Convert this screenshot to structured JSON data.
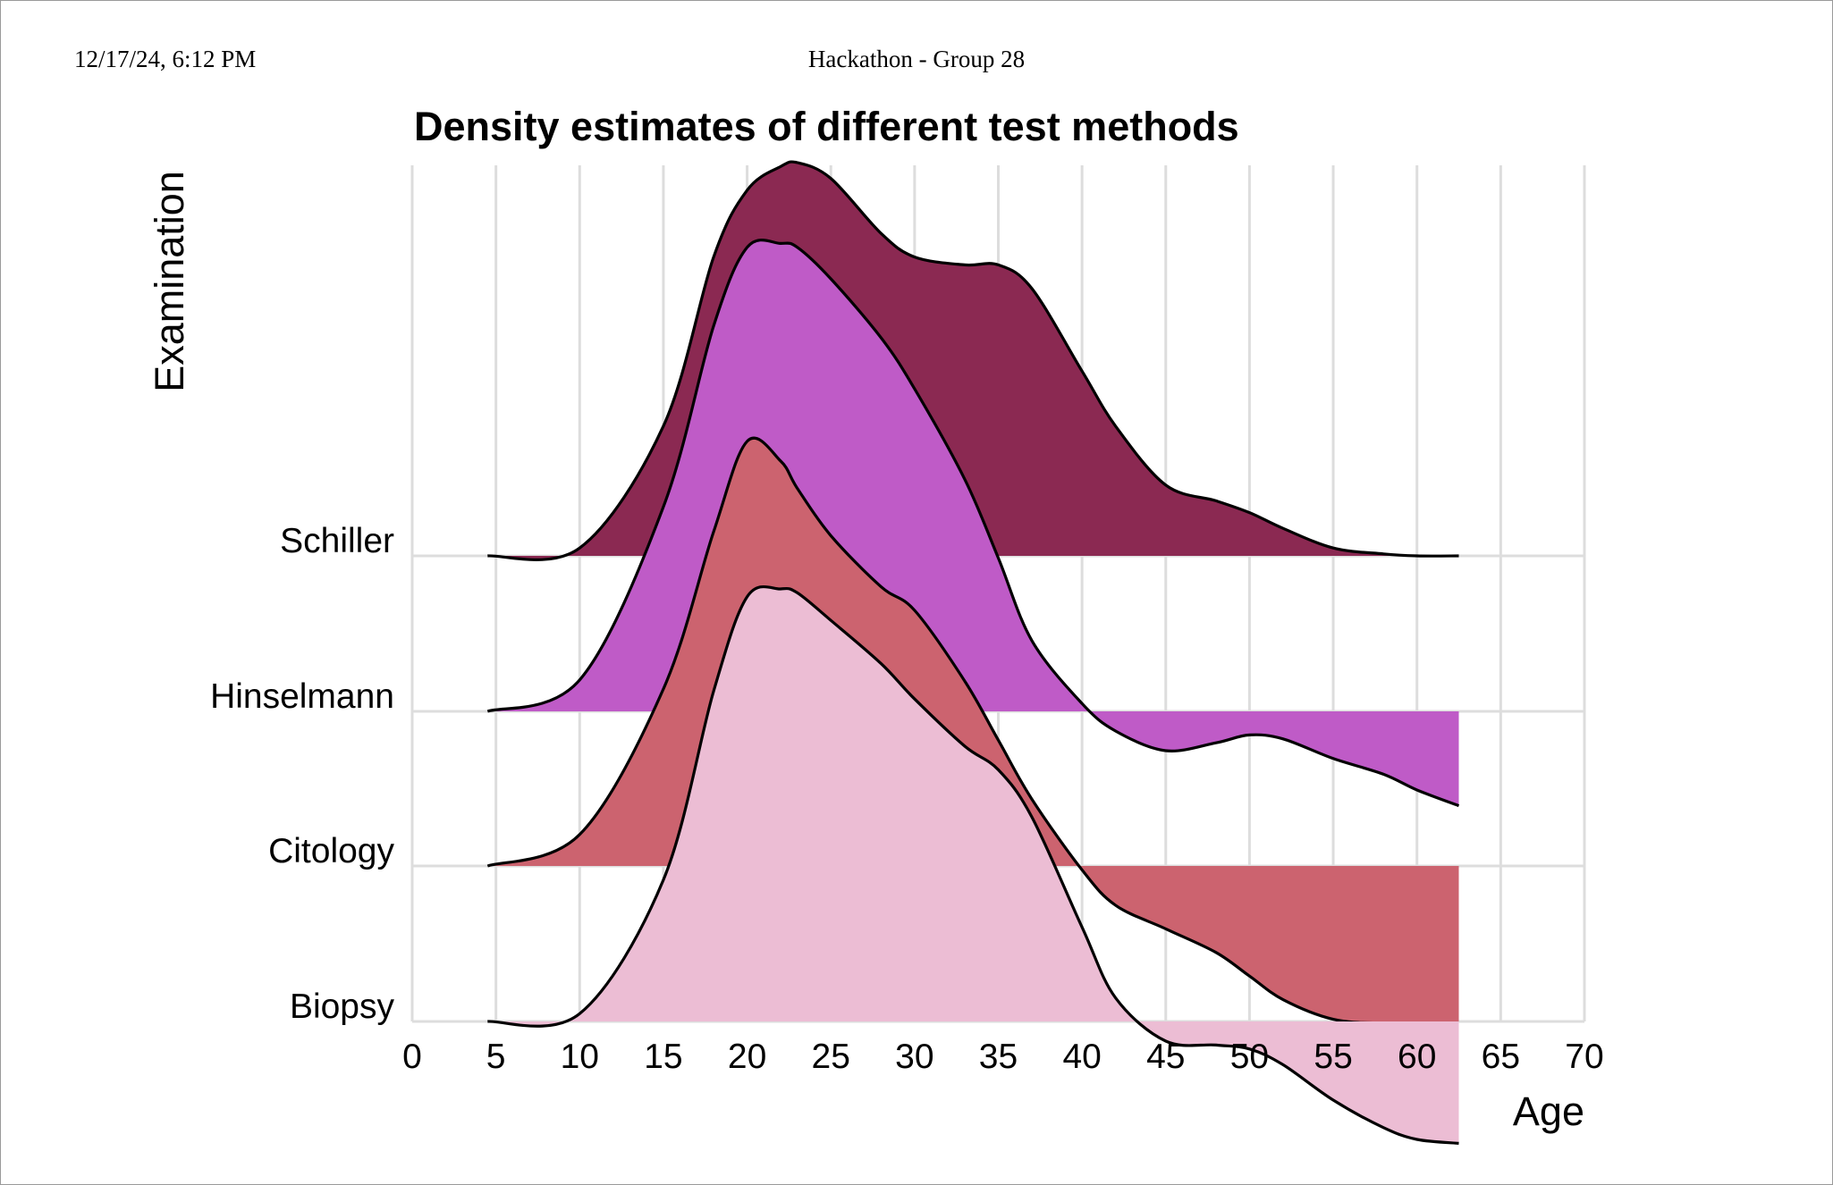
{
  "page": {
    "datetime": "12/17/24, 6:12 PM",
    "header_title": "Hackathon - Group 28"
  },
  "chart_data": {
    "type": "ridgeline",
    "title": "Density estimates of different test methods",
    "xlabel": "Age",
    "ylabel": "Examination",
    "xlim": [
      0,
      70
    ],
    "x_ticks": [
      "0",
      "5",
      "10",
      "15",
      "20",
      "25",
      "30",
      "35",
      "40",
      "45",
      "50",
      "55",
      "60",
      "65",
      "70"
    ],
    "grid": true,
    "categories": [
      "Schiller",
      "Hinselmann",
      "Citology",
      "Biopsy"
    ],
    "x": [
      4.5,
      10,
      15,
      18,
      20,
      22,
      23,
      25,
      28,
      30,
      33,
      35,
      37,
      40,
      42,
      45,
      48,
      50,
      52,
      55,
      58,
      60,
      62.5
    ],
    "series": [
      {
        "name": "Schiller",
        "color": "#8b2952",
        "values": [
          0.0,
          0.02,
          0.33,
          0.76,
          0.93,
          0.99,
          1.0,
          0.96,
          0.82,
          0.76,
          0.74,
          0.74,
          0.68,
          0.47,
          0.33,
          0.18,
          0.14,
          0.11,
          0.07,
          0.02,
          0.005,
          0.0,
          0.0
        ]
      },
      {
        "name": "Hinselmann",
        "color": "#bf5bc7",
        "values": [
          0.0,
          0.08,
          0.52,
          0.98,
          1.18,
          1.19,
          1.18,
          1.1,
          0.95,
          0.82,
          0.59,
          0.39,
          0.18,
          0.02,
          -0.05,
          -0.1,
          -0.08,
          -0.06,
          -0.07,
          -0.12,
          -0.16,
          -0.2,
          -0.24
        ]
      },
      {
        "name": "Citology",
        "color": "#cc636f",
        "values": [
          0.0,
          0.08,
          0.45,
          0.85,
          1.08,
          1.03,
          0.96,
          0.84,
          0.71,
          0.65,
          0.47,
          0.32,
          0.17,
          -0.01,
          -0.1,
          -0.16,
          -0.22,
          -0.28,
          -0.34,
          -0.39,
          -0.4,
          -0.4,
          -0.4
        ]
      },
      {
        "name": "Biopsy",
        "color": "#ecbdd4",
        "values": [
          0.0,
          0.02,
          0.36,
          0.84,
          1.08,
          1.1,
          1.09,
          1.02,
          0.91,
          0.82,
          0.7,
          0.64,
          0.52,
          0.24,
          0.06,
          -0.05,
          -0.06,
          -0.07,
          -0.11,
          -0.2,
          -0.27,
          -0.3,
          -0.31
        ]
      }
    ]
  }
}
